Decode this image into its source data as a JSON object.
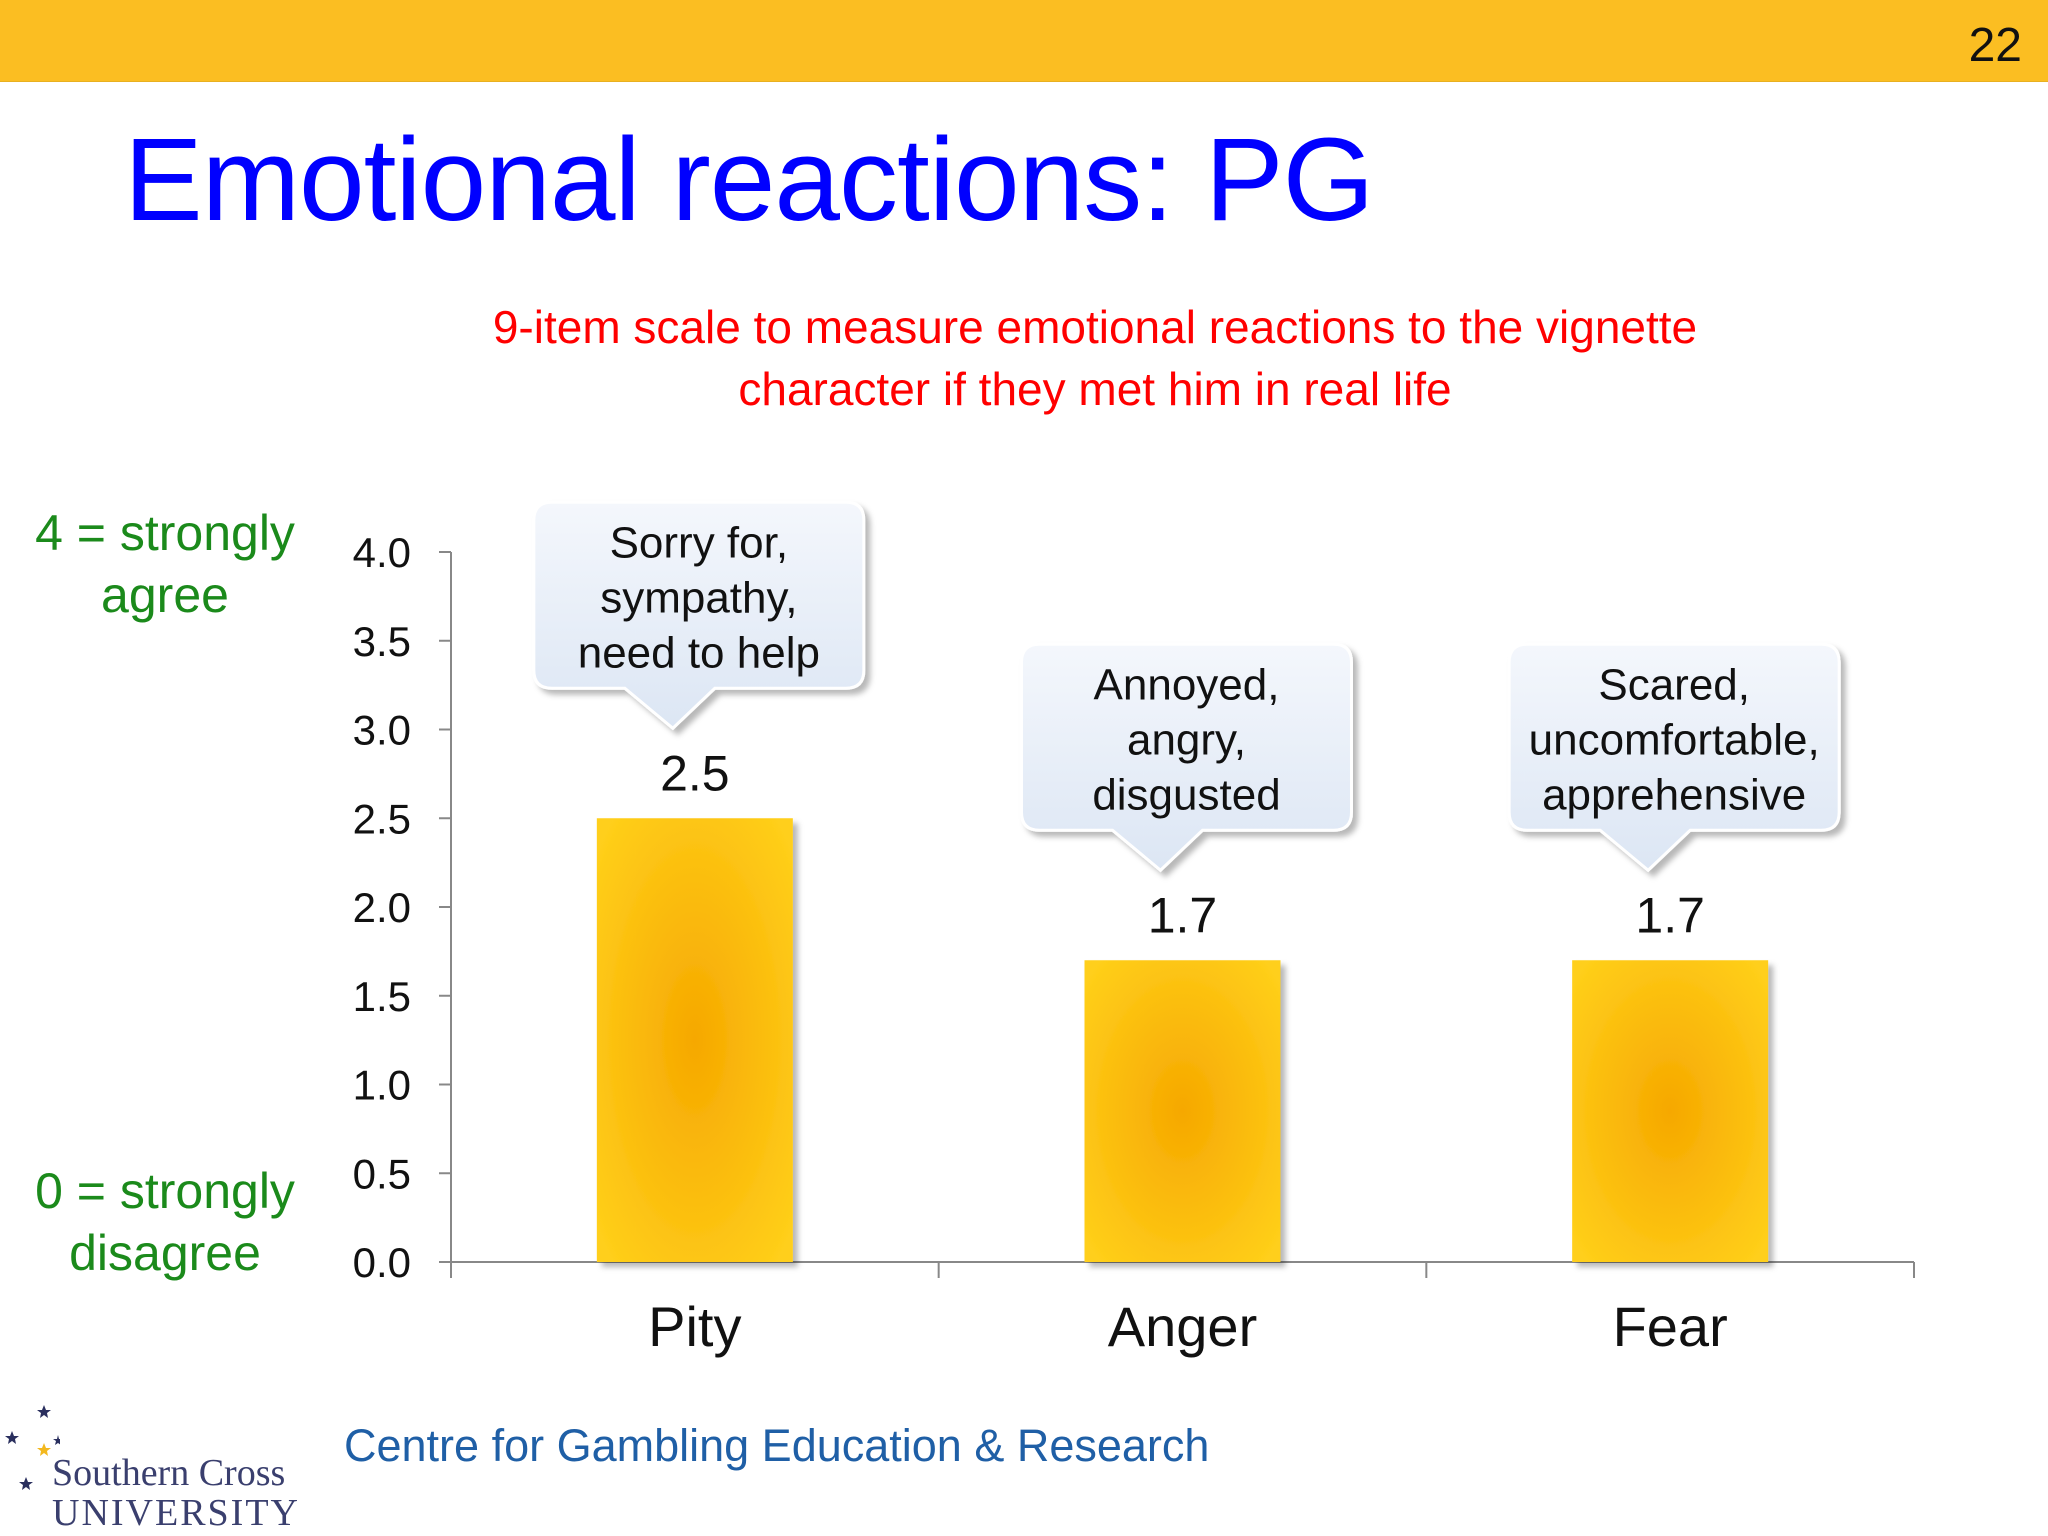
{
  "slide": {
    "number": "22",
    "title": "Emotional reactions: PG",
    "subtitle_line1": "9-item scale to measure emotional reactions to the vignette",
    "subtitle_line2": "character if they met him in real life"
  },
  "scale_labels": {
    "top_line1": "4 = strongly",
    "top_line2": "agree",
    "bottom_line1": "0 = strongly",
    "bottom_line2": "disagree"
  },
  "chart_data": {
    "type": "bar",
    "categories": [
      "Pity",
      "Anger",
      "Fear"
    ],
    "values": [
      2.5,
      1.7,
      1.7
    ],
    "data_labels": [
      "2.5",
      "1.7",
      "1.7"
    ],
    "ylim": [
      0,
      4
    ],
    "yticks": [
      "0.0",
      "0.5",
      "1.0",
      "1.5",
      "2.0",
      "2.5",
      "3.0",
      "3.5",
      "4.0"
    ],
    "grid": false,
    "bar_color": "#FBBE22",
    "callouts": [
      [
        "Sorry for,",
        "sympathy,",
        "need to help"
      ],
      [
        "Annoyed,",
        "angry,",
        "disgusted"
      ],
      [
        "Scared,",
        "uncomfortable,",
        "apprehensive"
      ]
    ]
  },
  "footer": {
    "org": "Centre for Gambling Education & Research",
    "logo_line1": "Southern Cross",
    "logo_line2": "UNIVERSITY",
    "logo_name": "southern-cross-stars-icon"
  },
  "colors": {
    "title": "#0000FF",
    "subtitle": "#FF0000",
    "scale_labels": "#1B8A1B",
    "top_bar": "#FBBE22",
    "footer": "#1F5FA6"
  }
}
